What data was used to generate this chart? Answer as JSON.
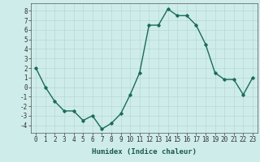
{
  "x": [
    0,
    1,
    2,
    3,
    4,
    5,
    6,
    7,
    8,
    9,
    10,
    11,
    12,
    13,
    14,
    15,
    16,
    17,
    18,
    19,
    20,
    21,
    22,
    23
  ],
  "y": [
    2,
    0,
    -1.5,
    -2.5,
    -2.5,
    -3.5,
    -3,
    -4.4,
    -3.8,
    -2.8,
    -0.8,
    1.5,
    6.5,
    6.5,
    8.2,
    7.5,
    7.5,
    6.5,
    4.5,
    1.5,
    0.8,
    0.8,
    -0.8,
    1.0
  ],
  "xlabel": "Humidex (Indice chaleur)",
  "xlim": [
    -0.5,
    23.5
  ],
  "ylim": [
    -4.8,
    8.8
  ],
  "yticks": [
    -4,
    -3,
    -2,
    -1,
    0,
    1,
    2,
    3,
    4,
    5,
    6,
    7,
    8
  ],
  "xticks": [
    0,
    1,
    2,
    3,
    4,
    5,
    6,
    7,
    8,
    9,
    10,
    11,
    12,
    13,
    14,
    15,
    16,
    17,
    18,
    19,
    20,
    21,
    22,
    23
  ],
  "line_color": "#1a6b5a",
  "marker": "D",
  "marker_size": 1.8,
  "bg_color": "#ceecea",
  "grid_color": "#b8d8d5",
  "xlabel_fontsize": 6.5,
  "tick_fontsize": 5.5,
  "linewidth": 1.0
}
